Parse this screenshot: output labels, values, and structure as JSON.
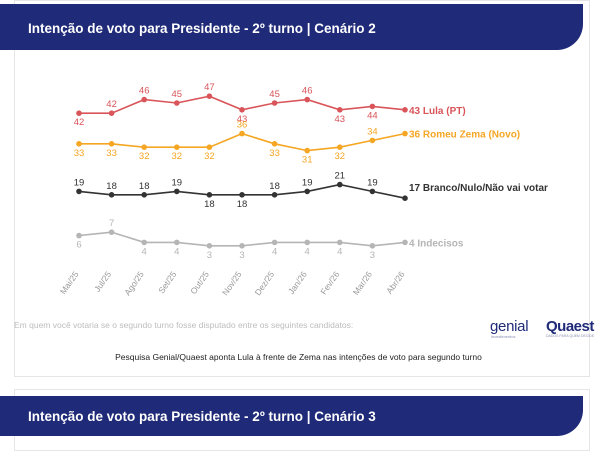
{
  "chart1": {
    "banner_title": "Intenção de voto para Presidente - 2º turno | Cenário 2",
    "question_text": "Em quem você votaria se o segundo turno fosse disputado entre os seguintes candidatos:",
    "logos": {
      "genial": "genial",
      "genial_sub": "investimentos",
      "quaest": "Quaest",
      "quaest_sub": "DADOS PARA QUEM DECIDE"
    },
    "caption": "Pesquisa Genial/Quaest aponta Lula à frente de Zema nas intenções de voto para segundo turno"
  },
  "chart2": {
    "banner_title": "Intenção de voto para Presidente - 2º turno | Cenário 3"
  },
  "chart_data": {
    "type": "line",
    "categories": [
      "Mai/25",
      "Jul/25",
      "Ago/25",
      "Set/25",
      "Out/25",
      "Nov/25",
      "Dez/25",
      "Jan/26",
      "Fev/26",
      "Mar/26",
      "Abr/26"
    ],
    "ylim": [
      0,
      50
    ],
    "grid": false,
    "legend": "end-of-line labels",
    "series": [
      {
        "name": "Lula (PT)",
        "color": "#d9555a",
        "values": [
          42,
          42,
          46,
          45,
          47,
          43,
          45,
          46,
          43,
          44,
          43
        ]
      },
      {
        "name": "Romeu Zema (Novo)",
        "color": "#f5a623",
        "values": [
          33,
          33,
          32,
          32,
          32,
          36,
          33,
          31,
          32,
          34,
          36
        ]
      },
      {
        "name": "Branco/Nulo/Não vai votar",
        "color": "#333333",
        "values": [
          19,
          18,
          18,
          19,
          18,
          18,
          18,
          19,
          21,
          19,
          17
        ]
      },
      {
        "name": "Indecisos",
        "color": "#b5b5b5",
        "values": [
          6,
          7,
          4,
          4,
          3,
          3,
          4,
          4,
          4,
          3,
          4
        ]
      }
    ]
  }
}
